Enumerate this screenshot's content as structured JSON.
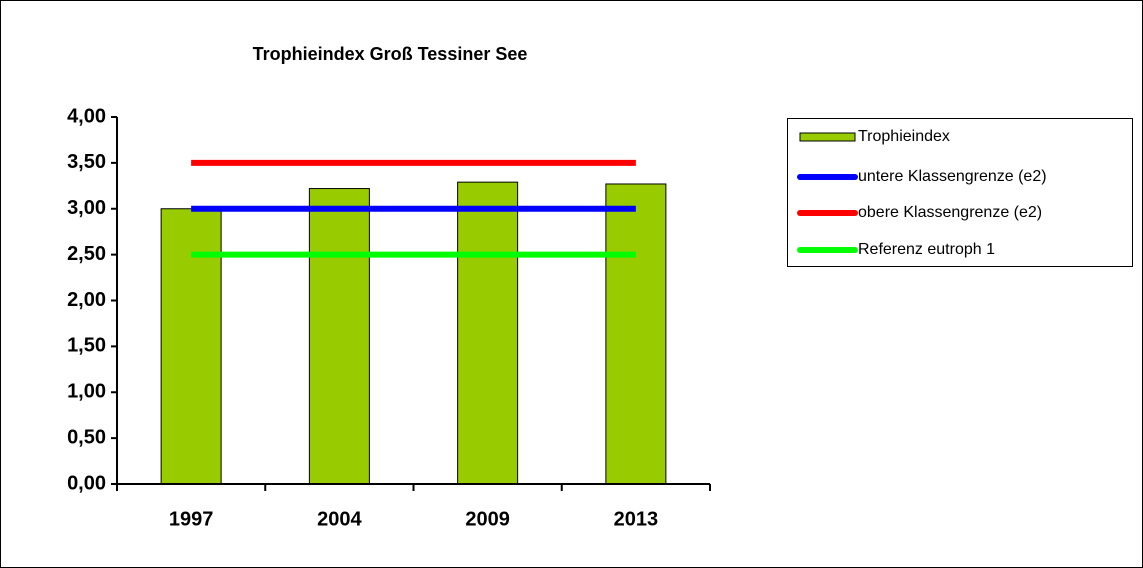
{
  "chart_data": {
    "type": "bar",
    "title": "Trophieindex Groß Tessiner See",
    "categories": [
      "1997",
      "2004",
      "2009",
      "2013"
    ],
    "series": [
      {
        "name": "Trophieindex",
        "type": "bar",
        "color": "#99cc00",
        "values": [
          3.0,
          3.22,
          3.29,
          3.27
        ]
      },
      {
        "name": "untere Klassengrenze (e2)",
        "type": "line",
        "color": "#0000ff",
        "values": [
          3.0,
          3.0,
          3.0,
          3.0
        ]
      },
      {
        "name": "obere Klassengrenze (e2)",
        "type": "line",
        "color": "#ff0000",
        "values": [
          3.5,
          3.5,
          3.5,
          3.5
        ]
      },
      {
        "name": "Referenz eutroph 1",
        "type": "line",
        "color": "#00ff00",
        "values": [
          2.5,
          2.5,
          2.5,
          2.5
        ]
      }
    ],
    "ylim": [
      0,
      4
    ],
    "yticks": [
      {
        "value": 0,
        "label": "0,00"
      },
      {
        "value": 0.5,
        "label": "0,50"
      },
      {
        "value": 1,
        "label": "1,00"
      },
      {
        "value": 1.5,
        "label": "1,50"
      },
      {
        "value": 2,
        "label": "2,00"
      },
      {
        "value": 2.5,
        "label": "2,50"
      },
      {
        "value": 3,
        "label": "3,00"
      },
      {
        "value": 3.5,
        "label": "3,50"
      },
      {
        "value": 4,
        "label": "4,00"
      }
    ],
    "legend": "right"
  }
}
